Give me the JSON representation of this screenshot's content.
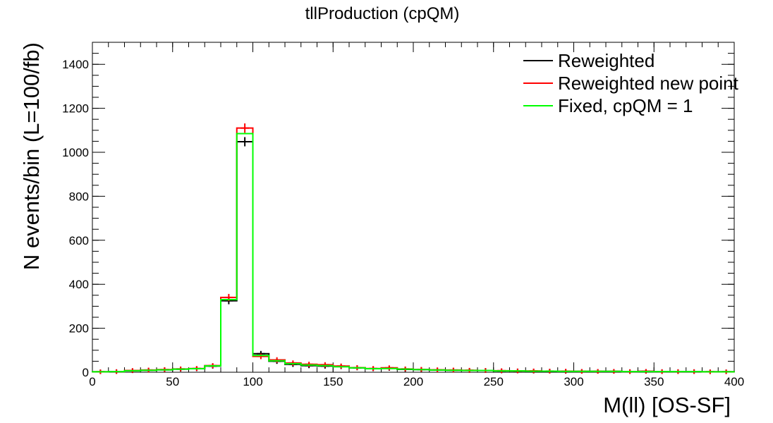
{
  "chart_data": {
    "type": "histogram",
    "title": "tllProduction (cpQM)",
    "xlabel": "M(ll) [OS-SF]",
    "ylabel": "N events/bin (L=100/fb)",
    "xlim": [
      0,
      400
    ],
    "ylim": [
      0,
      1500
    ],
    "x_ticks": [
      0,
      50,
      100,
      150,
      200,
      250,
      300,
      350,
      400
    ],
    "y_ticks": [
      0,
      200,
      400,
      600,
      800,
      1000,
      1200,
      1400
    ],
    "grid": false,
    "legend_position": "top-right",
    "bin_edges": [
      0,
      10,
      20,
      30,
      40,
      50,
      60,
      70,
      80,
      90,
      100,
      110,
      120,
      130,
      140,
      150,
      160,
      170,
      180,
      190,
      200,
      210,
      220,
      230,
      240,
      250,
      260,
      270,
      280,
      290,
      300,
      310,
      320,
      330,
      340,
      350,
      360,
      370,
      380,
      390,
      400
    ],
    "series": [
      {
        "name": "Reweighted",
        "color": "#000000",
        "errorbars": true,
        "values": [
          2,
          3,
          7,
          9,
          11,
          14,
          16,
          28,
          325,
          1048,
          84,
          50,
          36,
          30,
          28,
          26,
          20,
          16,
          18,
          13,
          12,
          10,
          9,
          8,
          8,
          6,
          6,
          5,
          5,
          4,
          4,
          4,
          4,
          3,
          4,
          3,
          3,
          3,
          2,
          2
        ]
      },
      {
        "name": "Reweighted new point",
        "color": "#ff0000",
        "errorbars": true,
        "values": [
          2,
          3,
          8,
          10,
          12,
          15,
          17,
          30,
          340,
          1110,
          72,
          56,
          42,
          36,
          34,
          28,
          21,
          17,
          20,
          15,
          13,
          11,
          10,
          9,
          8,
          7,
          6,
          6,
          5,
          5,
          4,
          4,
          4,
          3,
          4,
          3,
          3,
          3,
          2,
          2
        ]
      },
      {
        "name": "Fixed, cpQM = 1",
        "color": "#00ff00",
        "errorbars": false,
        "values": [
          2,
          3,
          7,
          9,
          11,
          14,
          16,
          29,
          330,
          1085,
          76,
          52,
          39,
          33,
          30,
          25,
          20,
          16,
          17,
          14,
          12,
          10,
          9,
          8,
          8,
          6,
          6,
          5,
          5,
          4,
          4,
          4,
          4,
          3,
          3,
          3,
          3,
          3,
          2,
          2
        ]
      }
    ]
  }
}
